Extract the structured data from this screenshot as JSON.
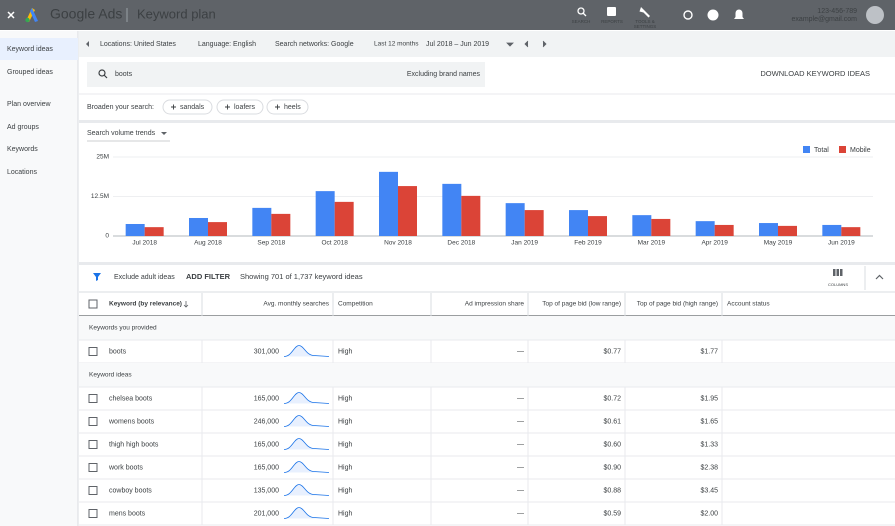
{
  "header": {
    "product": "Google Ads",
    "page_title": "Keyword plan",
    "nav": [
      "SEARCH",
      "REPORTS"
    ],
    "tools_label": [
      "TOOLS &",
      "SETTINGS"
    ],
    "account_id": "123-456-789",
    "email": "example@gmail.com"
  },
  "sidebar": {
    "items": [
      "Keyword ideas",
      "Grouped ideas",
      "Plan overview",
      "Ad groups",
      "Keywords",
      "Locations"
    ]
  },
  "filters": {
    "locations": "Locations: United States",
    "language": "Language: English",
    "networks": "Search networks: Google",
    "period": "Last 12 months",
    "dates": "Jul 2018 – Jun 2019"
  },
  "search": {
    "query": "boots",
    "brand_option": "Excluding brand names",
    "download": "DOWNLOAD KEYWORD IDEAS",
    "broaden_label": "Broaden your search:",
    "chips": [
      "sandals",
      "loafers",
      "heels"
    ]
  },
  "chart_data": {
    "type": "bar",
    "title": "Search volume trends",
    "categories": [
      "Jul 2018",
      "Aug 2018",
      "Sep 2018",
      "Oct 2018",
      "Nov 2018",
      "Dec 2018",
      "Jan 2019",
      "Feb 2019",
      "Mar 2019",
      "Apr 2019",
      "May 2019",
      "Jun 2019"
    ],
    "series": [
      {
        "name": "Total",
        "color": "#4285f4",
        "values": [
          3.8,
          5.7,
          8.9,
          14.2,
          20.3,
          16.5,
          10.4,
          8.2,
          6.6,
          4.7,
          4.1,
          3.5
        ]
      },
      {
        "name": "Mobile",
        "color": "#db4437",
        "values": [
          2.8,
          4.4,
          7.0,
          10.8,
          15.8,
          12.7,
          8.2,
          6.3,
          5.4,
          3.5,
          3.2,
          2.8
        ]
      }
    ],
    "ylim": [
      0,
      25
    ],
    "yticks": [
      0,
      {
        "value": 12.5,
        "label": "12.5M"
      },
      {
        "value": 25,
        "label": "25M"
      }
    ],
    "grid": true,
    "legend": "top-right"
  },
  "table_toolbar": {
    "exclude": "Exclude adult ideas",
    "add_filter": "ADD FILTER",
    "showing": "Showing 701 of 1,737 keyword ideas",
    "columns": "COLUMNS"
  },
  "table": {
    "columns": [
      "Keyword (by relevance)",
      "Avg. monthly searches",
      "Competition",
      "Ad impression share",
      "Top of page bid (low range)",
      "Top of page bid (high range)",
      "Account status"
    ],
    "sections": [
      {
        "title": "Keywords you provided",
        "rows": [
          [
            "boots",
            "301,000",
            "High",
            "—",
            "$0.77",
            "$1.77"
          ]
        ]
      },
      {
        "title": "Keyword ideas",
        "rows": [
          [
            "chelsea boots",
            "165,000",
            "High",
            "—",
            "$0.72",
            "$1.95"
          ],
          [
            "womens boots",
            "246,000",
            "High",
            "—",
            "$0.61",
            "$1.65"
          ],
          [
            "thigh high boots",
            "165,000",
            "High",
            "—",
            "$0.60",
            "$1.33"
          ],
          [
            "work boots",
            "165,000",
            "High",
            "—",
            "$0.90",
            "$2.38"
          ],
          [
            "cowboy boots",
            "135,000",
            "High",
            "—",
            "$0.88",
            "$3.45"
          ],
          [
            "mens boots",
            "201,000",
            "High",
            "—",
            "$0.59",
            "$2.00"
          ]
        ]
      }
    ]
  }
}
